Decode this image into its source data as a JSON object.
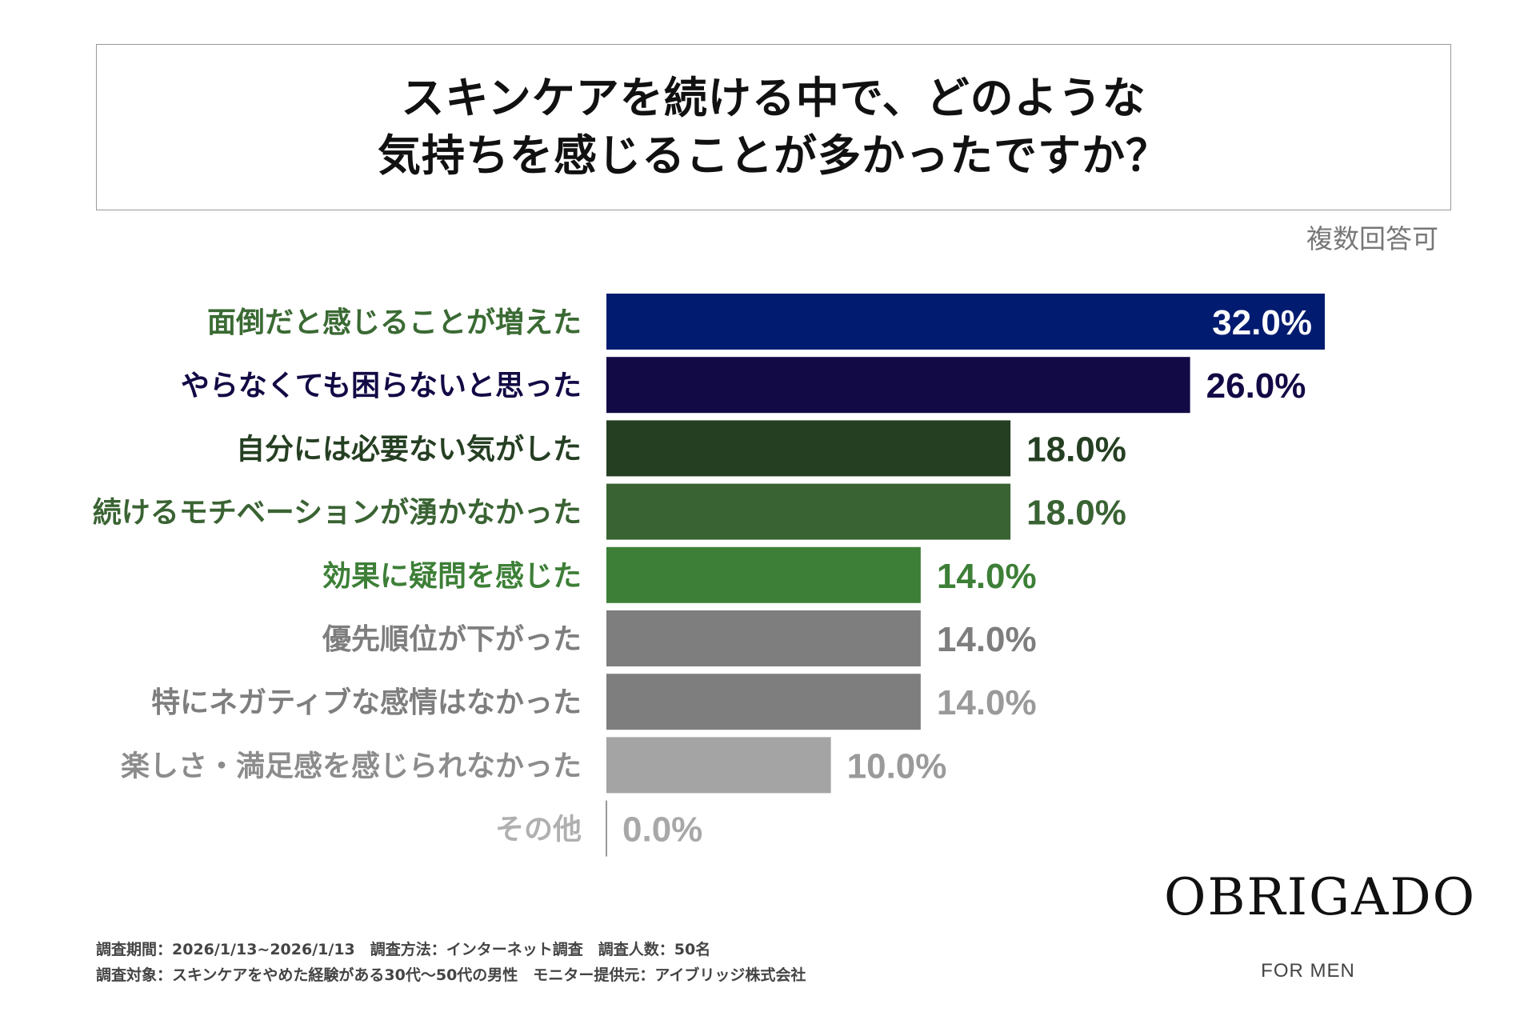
{
  "title": {
    "line1": "スキンケアを続ける中で、どのような",
    "line2": "気持ちを感じることが多かったですか？"
  },
  "note": "複数回答可",
  "chart_data": {
    "type": "bar",
    "orientation": "horizontal",
    "categories": [
      "面倒だと感じることが増えた",
      "やらなくても困らないと思った",
      "自分には必要ない気がした",
      "続けるモチベーションが湧かなかった",
      "効果に疑問を感じた",
      "優先順位が下がった",
      "特にネガティブな感情はなかった",
      "楽しさ・満足感を感じられなかった",
      "その他"
    ],
    "values": [
      32.0,
      26.0,
      18.0,
      18.0,
      14.0,
      14.0,
      14.0,
      10.0,
      0.0
    ],
    "value_labels": [
      "32.0%",
      "26.0%",
      "18.0%",
      "18.0%",
      "14.0%",
      "14.0%",
      "14.0%",
      "10.0%",
      "0.0%"
    ],
    "bar_colors": [
      "#001b6f",
      "#120a45",
      "#253f22",
      "#3a6333",
      "#3d7f37",
      "#7e7e7e",
      "#7e7e7e",
      "#a4a4a4",
      "#cccccc"
    ],
    "label_colors": [
      "#3a6a33",
      "#120a45",
      "#253f22",
      "#3a6333",
      "#3d7f37",
      "#7e7e7e",
      "#7e7e7e",
      "#8c8c8c",
      "#b0b0b0"
    ],
    "value_colors": [
      "#ffffff",
      "#120a45",
      "#253f22",
      "#3a6333",
      "#3d7f37",
      "#7e7e7e",
      "#9a9a9a",
      "#9a9a9a",
      "#a8a8a8"
    ],
    "xlim": [
      0,
      32.0
    ],
    "unit": "%"
  },
  "brand": {
    "name": "OBRIGADO",
    "tagline": "FOR MEN"
  },
  "footer": {
    "line1": "調査期間：2026/1/13~2026/1/13　調査方法：インターネット調査　調査人数：50名",
    "line2": "調査対象：スキンケアをやめた経験がある30代〜50代の男性　モニター提供元：アイブリッジ株式会社"
  }
}
